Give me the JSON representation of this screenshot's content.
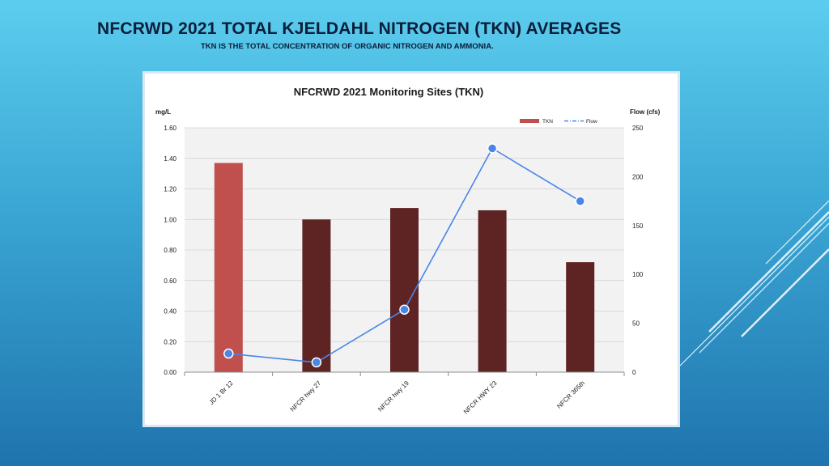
{
  "slide": {
    "title": "NFCRWD 2021 TOTAL KJELDAHL NITROGEN (TKN) AVERAGES",
    "subtitle": "TKN IS THE TOTAL CONCENTRATION OF ORGANIC NITROGEN AND AMMONIA."
  },
  "colors": {
    "background_top": "#5ccdee",
    "background_bottom": "#1f74ad",
    "bar_highlight": "#c0504d",
    "bar": "#5e2424",
    "line": "#4a86e8",
    "plot_area": "#f2f2f2"
  },
  "chart_data": {
    "type": "bar",
    "title": "NFCRWD 2021 Monitoring Sites (TKN)",
    "ylabel": "mg/L",
    "y2label": "Flow (cfs)",
    "categories": [
      "JD 1 Br 12",
      "NFCR hwy 27",
      "NFCR hwy 19",
      "NFCR HWY 23",
      "NFCR 365th"
    ],
    "series": [
      {
        "name": "TKN",
        "type": "bar",
        "axis": "left",
        "values": [
          1.37,
          1.0,
          1.075,
          1.06,
          0.72
        ]
      },
      {
        "name": "Flow",
        "type": "line",
        "axis": "right",
        "values": [
          19,
          10,
          64,
          229,
          175
        ]
      }
    ],
    "ylim": [
      0,
      1.6
    ],
    "yticks": [
      "0.00",
      "0.20",
      "0.40",
      "0.60",
      "0.80",
      "1.00",
      "1.20",
      "1.40",
      "1.60"
    ],
    "y2lim": [
      0,
      250
    ],
    "y2ticks": [
      "0",
      "50",
      "100",
      "150",
      "200",
      "250"
    ],
    "legend": "top-right",
    "grid": true
  }
}
